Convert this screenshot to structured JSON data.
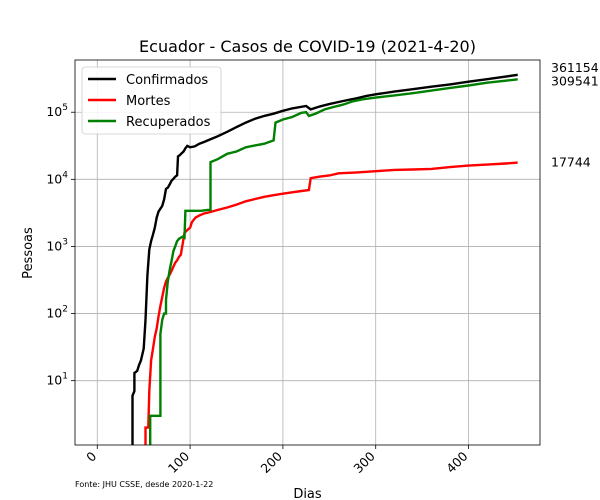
{
  "chart_data": {
    "type": "line",
    "title": "Ecuador - Casos de COVID-19 (2021-4-20)",
    "xlabel": "Dias",
    "ylabel": "Pessoas",
    "source_note": "Fonte: JHU CSSE, desde 2020-1-22",
    "xlim": [
      -24,
      477
    ],
    "ylim": [
      1.1,
      600000
    ],
    "yscale": "log",
    "grid": true,
    "legend_position": "top-left",
    "x_ticks": [
      0,
      100,
      200,
      300,
      400
    ],
    "y_ticks": [
      {
        "value": 10,
        "base": "10",
        "exp": "1"
      },
      {
        "value": 100,
        "base": "10",
        "exp": "2"
      },
      {
        "value": 1000,
        "base": "10",
        "exp": "3"
      },
      {
        "value": 10000,
        "base": "10",
        "exp": "4"
      },
      {
        "value": 100000,
        "base": "10",
        "exp": "5"
      }
    ],
    "series": [
      {
        "name": "Confirmados",
        "color": "#000000",
        "end_label": "361154",
        "points": [
          [
            38,
            1
          ],
          [
            38,
            6
          ],
          [
            40,
            7
          ],
          [
            40,
            13
          ],
          [
            43,
            14
          ],
          [
            45,
            17
          ],
          [
            47,
            20
          ],
          [
            50,
            30
          ],
          [
            52,
            80
          ],
          [
            54,
            370
          ],
          [
            56,
            900
          ],
          [
            58,
            1200
          ],
          [
            60,
            1500
          ],
          [
            62,
            1900
          ],
          [
            64,
            2700
          ],
          [
            66,
            3300
          ],
          [
            68,
            3650
          ],
          [
            70,
            4000
          ],
          [
            72,
            5000
          ],
          [
            74,
            7200
          ],
          [
            76,
            7500
          ],
          [
            78,
            8400
          ],
          [
            80,
            9500
          ],
          [
            82,
            10200
          ],
          [
            84,
            10900
          ],
          [
            86,
            11500
          ],
          [
            87,
            22000
          ],
          [
            89,
            23000
          ],
          [
            91,
            24500
          ],
          [
            93,
            26000
          ],
          [
            95,
            29000
          ],
          [
            97,
            31500
          ],
          [
            100,
            30000
          ],
          [
            105,
            31000
          ],
          [
            110,
            34000
          ],
          [
            115,
            36000
          ],
          [
            120,
            38500
          ],
          [
            130,
            44000
          ],
          [
            140,
            51000
          ],
          [
            150,
            60000
          ],
          [
            160,
            70000
          ],
          [
            170,
            80000
          ],
          [
            180,
            88000
          ],
          [
            190,
            95000
          ],
          [
            200,
            105000
          ],
          [
            210,
            114000
          ],
          [
            225,
            124000
          ],
          [
            230,
            110000
          ],
          [
            240,
            122000
          ],
          [
            250,
            132000
          ],
          [
            260,
            142000
          ],
          [
            270,
            152000
          ],
          [
            280,
            162000
          ],
          [
            290,
            175000
          ],
          [
            300,
            185000
          ],
          [
            320,
            203000
          ],
          [
            340,
            220000
          ],
          [
            360,
            240000
          ],
          [
            380,
            260000
          ],
          [
            400,
            285000
          ],
          [
            420,
            310000
          ],
          [
            440,
            340000
          ],
          [
            453,
            361154
          ]
        ]
      },
      {
        "name": "Mortes",
        "color": "#ff0000",
        "end_label": "17744",
        "points": [
          [
            52,
            1
          ],
          [
            52,
            2
          ],
          [
            55,
            2
          ],
          [
            56,
            7
          ],
          [
            58,
            20
          ],
          [
            60,
            30
          ],
          [
            62,
            45
          ],
          [
            64,
            60
          ],
          [
            66,
            90
          ],
          [
            68,
            130
          ],
          [
            70,
            175
          ],
          [
            72,
            240
          ],
          [
            74,
            300
          ],
          [
            76,
            340
          ],
          [
            78,
            380
          ],
          [
            80,
            430
          ],
          [
            82,
            500
          ],
          [
            84,
            570
          ],
          [
            86,
            620
          ],
          [
            88,
            700
          ],
          [
            90,
            750
          ],
          [
            92,
            1100
          ],
          [
            94,
            1600
          ],
          [
            96,
            1700
          ],
          [
            98,
            1800
          ],
          [
            100,
            1900
          ],
          [
            102,
            2300
          ],
          [
            104,
            2500
          ],
          [
            106,
            2700
          ],
          [
            110,
            2900
          ],
          [
            115,
            3100
          ],
          [
            120,
            3200
          ],
          [
            130,
            3500
          ],
          [
            140,
            3800
          ],
          [
            150,
            4200
          ],
          [
            160,
            4700
          ],
          [
            170,
            5100
          ],
          [
            180,
            5500
          ],
          [
            190,
            5800
          ],
          [
            200,
            6100
          ],
          [
            210,
            6400
          ],
          [
            220,
            6700
          ],
          [
            228,
            6900
          ],
          [
            230,
            10400
          ],
          [
            240,
            11000
          ],
          [
            250,
            11400
          ],
          [
            260,
            12300
          ],
          [
            280,
            12700
          ],
          [
            300,
            13200
          ],
          [
            320,
            13800
          ],
          [
            340,
            14000
          ],
          [
            360,
            14300
          ],
          [
            380,
            15200
          ],
          [
            400,
            16000
          ],
          [
            420,
            16600
          ],
          [
            440,
            17200
          ],
          [
            453,
            17744
          ]
        ]
      },
      {
        "name": "Recuperados",
        "color": "#008000",
        "end_label": "309541",
        "points": [
          [
            57,
            1
          ],
          [
            57,
            3
          ],
          [
            68,
            3
          ],
          [
            68,
            50
          ],
          [
            70,
            80
          ],
          [
            72,
            100
          ],
          [
            74,
            100
          ],
          [
            74,
            160
          ],
          [
            76,
            300
          ],
          [
            78,
            450
          ],
          [
            80,
            600
          ],
          [
            82,
            850
          ],
          [
            84,
            1000
          ],
          [
            86,
            1200
          ],
          [
            88,
            1300
          ],
          [
            90,
            1350
          ],
          [
            92,
            1400
          ],
          [
            94,
            1350
          ],
          [
            95,
            3400
          ],
          [
            105,
            3400
          ],
          [
            112,
            3400
          ],
          [
            119,
            3500
          ],
          [
            122,
            3500
          ],
          [
            122,
            18000
          ],
          [
            130,
            20000
          ],
          [
            140,
            24000
          ],
          [
            150,
            26000
          ],
          [
            160,
            30000
          ],
          [
            170,
            32000
          ],
          [
            180,
            34000
          ],
          [
            190,
            38000
          ],
          [
            192,
            70000
          ],
          [
            200,
            78000
          ],
          [
            210,
            85000
          ],
          [
            220,
            98000
          ],
          [
            225,
            100000
          ],
          [
            228,
            88000
          ],
          [
            235,
            95000
          ],
          [
            245,
            110000
          ],
          [
            255,
            120000
          ],
          [
            265,
            130000
          ],
          [
            275,
            145000
          ],
          [
            285,
            155000
          ],
          [
            300,
            165000
          ],
          [
            320,
            178000
          ],
          [
            340,
            192000
          ],
          [
            360,
            210000
          ],
          [
            380,
            230000
          ],
          [
            400,
            250000
          ],
          [
            420,
            275000
          ],
          [
            440,
            295000
          ],
          [
            453,
            309541
          ]
        ]
      }
    ]
  }
}
